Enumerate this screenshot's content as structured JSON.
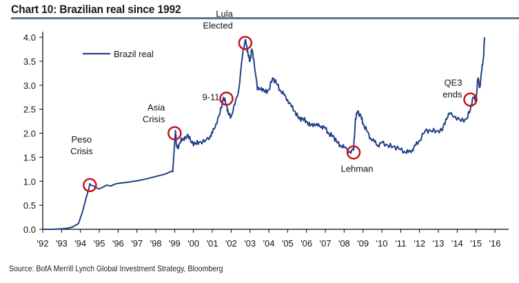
{
  "chart_data": {
    "type": "line",
    "title": "Chart 10: Brazilian real since 1992",
    "xlabel": "",
    "ylabel": "",
    "xlim": [
      1992,
      2016.8
    ],
    "ylim": [
      0,
      4.0
    ],
    "yticks": [
      0.0,
      0.5,
      1.0,
      1.5,
      2.0,
      2.5,
      3.0,
      3.5,
      4.0
    ],
    "ytick_labels": [
      "0.0",
      "0.5",
      "1.0",
      "1.5",
      "2.0",
      "2.5",
      "3.0",
      "3.5",
      "4.0"
    ],
    "xticks": [
      1992,
      1993,
      1994,
      1995,
      1996,
      1997,
      1998,
      1999,
      2000,
      2001,
      2002,
      2003,
      2004,
      2005,
      2006,
      2007,
      2008,
      2009,
      2010,
      2011,
      2012,
      2013,
      2014,
      2015,
      2016
    ],
    "xtick_labels": [
      "'92",
      "'93",
      "'94",
      "'95",
      "'96",
      "'97",
      "'98",
      "'99",
      "'00",
      "'01",
      "'02",
      "'03",
      "'04",
      "'05",
      "'06",
      "'07",
      "'08",
      "'09",
      "'10",
      "'11",
      "'12",
      "'13",
      "'14",
      "'15",
      "'16"
    ],
    "grid": false,
    "legend": {
      "position": "top-left",
      "entries": [
        "Brazil real"
      ]
    },
    "series": [
      {
        "name": "Brazil real",
        "color": "#1f3f86",
        "x": [
          1992.0,
          1992.5,
          1993.0,
          1993.3,
          1993.6,
          1993.9,
          1994.1,
          1994.3,
          1994.45,
          1994.5,
          1994.55,
          1994.7,
          1994.9,
          1995.0,
          1995.2,
          1995.4,
          1995.6,
          1995.9,
          1996.5,
          1997.0,
          1997.5,
          1998.0,
          1998.5,
          1998.85,
          1998.9,
          1999.02,
          1999.05,
          1999.1,
          1999.2,
          1999.35,
          1999.5,
          1999.7,
          1999.9,
          2000.1,
          2000.3,
          2000.6,
          2000.9,
          2001.0,
          2001.2,
          2001.4,
          2001.6,
          2001.75,
          2001.85,
          2002.0,
          2002.2,
          2002.4,
          2002.6,
          2002.75,
          2002.8,
          2002.9,
          2003.0,
          2003.1,
          2003.2,
          2003.4,
          2003.6,
          2003.8,
          2004.0,
          2004.2,
          2004.4,
          2004.6,
          2004.8,
          2005.0,
          2005.2,
          2005.4,
          2005.6,
          2005.8,
          2006.0,
          2006.2,
          2006.4,
          2006.6,
          2006.8,
          2007.0,
          2007.2,
          2007.4,
          2007.6,
          2007.8,
          2008.0,
          2008.3,
          2008.5,
          2008.6,
          2008.7,
          2008.9,
          2009.0,
          2009.2,
          2009.4,
          2009.6,
          2009.8,
          2010.0,
          2010.3,
          2010.6,
          2010.9,
          2011.2,
          2011.4,
          2011.6,
          2011.8,
          2012.0,
          2012.3,
          2012.6,
          2012.9,
          2013.2,
          2013.4,
          2013.6,
          2013.9,
          2014.2,
          2014.5,
          2014.7,
          2014.85,
          2015.0,
          2015.1,
          2015.2,
          2015.3,
          2015.4,
          2015.45
        ],
        "y": [
          0.0,
          0.0,
          0.01,
          0.02,
          0.05,
          0.12,
          0.35,
          0.65,
          0.85,
          0.95,
          0.92,
          0.9,
          0.85,
          0.84,
          0.88,
          0.92,
          0.9,
          0.95,
          0.98,
          1.01,
          1.05,
          1.1,
          1.15,
          1.21,
          1.2,
          1.9,
          2.05,
          1.75,
          1.68,
          1.9,
          1.85,
          1.98,
          1.8,
          1.78,
          1.82,
          1.82,
          1.95,
          2.0,
          2.2,
          2.4,
          2.75,
          2.6,
          2.4,
          2.35,
          2.6,
          2.9,
          3.6,
          3.95,
          3.85,
          3.65,
          3.5,
          3.75,
          3.55,
          2.9,
          2.95,
          2.85,
          2.9,
          3.15,
          3.05,
          2.9,
          2.8,
          2.7,
          2.55,
          2.45,
          2.3,
          2.3,
          2.25,
          2.15,
          2.2,
          2.15,
          2.15,
          2.1,
          1.98,
          1.95,
          1.82,
          1.75,
          1.7,
          1.62,
          1.65,
          2.3,
          2.45,
          2.35,
          2.2,
          2.05,
          1.9,
          1.82,
          1.75,
          1.8,
          1.75,
          1.72,
          1.68,
          1.62,
          1.6,
          1.65,
          1.75,
          1.85,
          2.05,
          2.05,
          2.05,
          2.05,
          2.3,
          2.4,
          2.35,
          2.25,
          2.3,
          2.5,
          2.75,
          2.7,
          3.15,
          2.95,
          3.3,
          3.6,
          4.0
        ]
      }
    ],
    "annotations": [
      {
        "label": [
          "Peso",
          "Crisis"
        ],
        "x": 1994.5,
        "y": 0.92
      },
      {
        "label": [
          "Asia",
          "Crisis"
        ],
        "x": 1999.0,
        "y": 2.0
      },
      {
        "label": [
          "9-11"
        ],
        "x": 2001.75,
        "y": 2.72
      },
      {
        "label": [
          "Lula",
          "Elected"
        ],
        "x": 2002.75,
        "y": 3.88
      },
      {
        "label": [
          "Lehman"
        ],
        "x": 2008.5,
        "y": 1.6
      },
      {
        "label": [
          "QE3",
          "ends"
        ],
        "x": 2014.7,
        "y": 2.7
      }
    ],
    "annotation_color": "#c0141b",
    "source": "Source: BofA Merrill Lynch Global Investment Strategy, Bloomberg"
  }
}
